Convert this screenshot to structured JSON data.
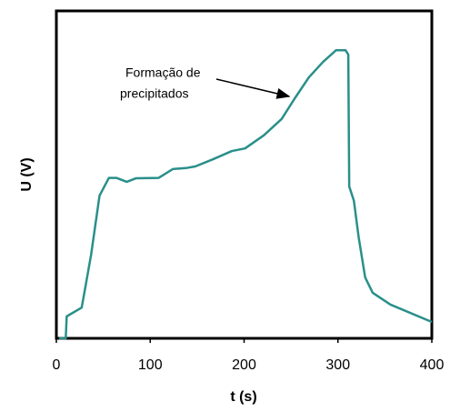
{
  "chart_data": {
    "type": "line",
    "x_label": "t (s)",
    "y_label": "U (V)",
    "annotation": [
      "Formação de",
      "precipitados"
    ],
    "xlim": [
      0,
      400
    ],
    "xticks": [
      0,
      100,
      200,
      300,
      400
    ],
    "ylim": [
      0,
      100
    ],
    "series": [
      {
        "name": "U",
        "color": "#2a8f8a",
        "x": [
          3,
          10,
          11,
          27,
          37,
          46,
          56,
          64,
          75,
          85,
          109,
          124,
          138,
          148,
          167,
          187,
          201,
          221,
          240,
          254,
          269,
          284,
          298,
          308,
          311,
          312,
          317,
          322,
          329,
          337,
          356,
          400
        ],
        "values": [
          0,
          0,
          6.7,
          9.4,
          25.5,
          43.6,
          49,
          49,
          47.8,
          48.9,
          49,
          51.7,
          52,
          52.5,
          54.7,
          57.2,
          58,
          62,
          67,
          73.3,
          79.7,
          84.4,
          88,
          88,
          86.7,
          46.4,
          42,
          31,
          18.6,
          13.9,
          10.3,
          5
        ]
      }
    ]
  }
}
